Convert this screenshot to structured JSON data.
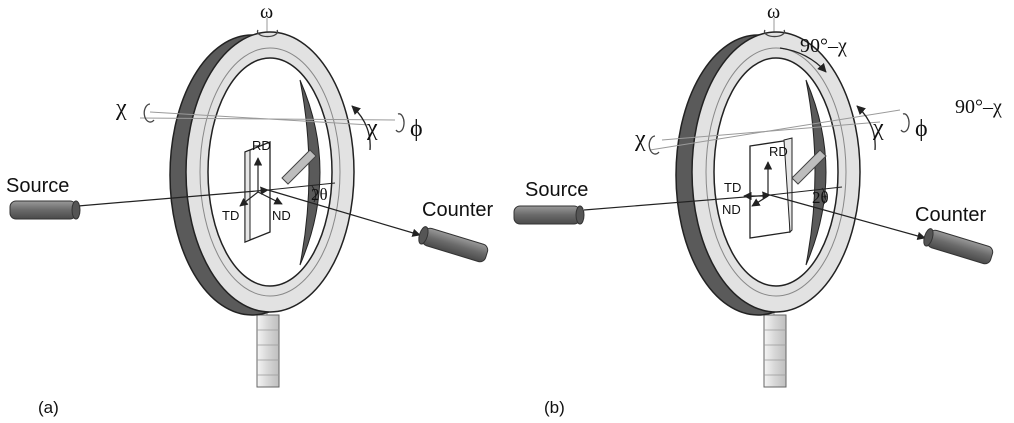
{
  "panels": [
    {
      "id": "a",
      "caption": "(a)",
      "labels": {
        "omega": "ω",
        "chi_left": "χ",
        "chi_right": "χ",
        "phi": "ϕ",
        "source": "Source",
        "counter": "Counter",
        "rd": "RD",
        "td": "TD",
        "nd": "ND",
        "two_theta": "2θ"
      }
    },
    {
      "id": "b",
      "caption": "(b)",
      "labels": {
        "omega": "ω",
        "ninety_minus_chi_top": "90°–χ",
        "ninety_minus_chi_side": "90°–χ",
        "chi_left": "χ",
        "chi_right": "χ",
        "phi": "ϕ",
        "source": "Source",
        "counter": "Counter",
        "rd": "RD",
        "td": "TD",
        "nd": "ND",
        "two_theta": "2θ"
      }
    }
  ],
  "colors": {
    "ring_dark": "#5a5a5a",
    "ring_light": "#e2e2e2",
    "tube": "#777777",
    "line": "#222222",
    "axis": "#9a9a9a"
  }
}
